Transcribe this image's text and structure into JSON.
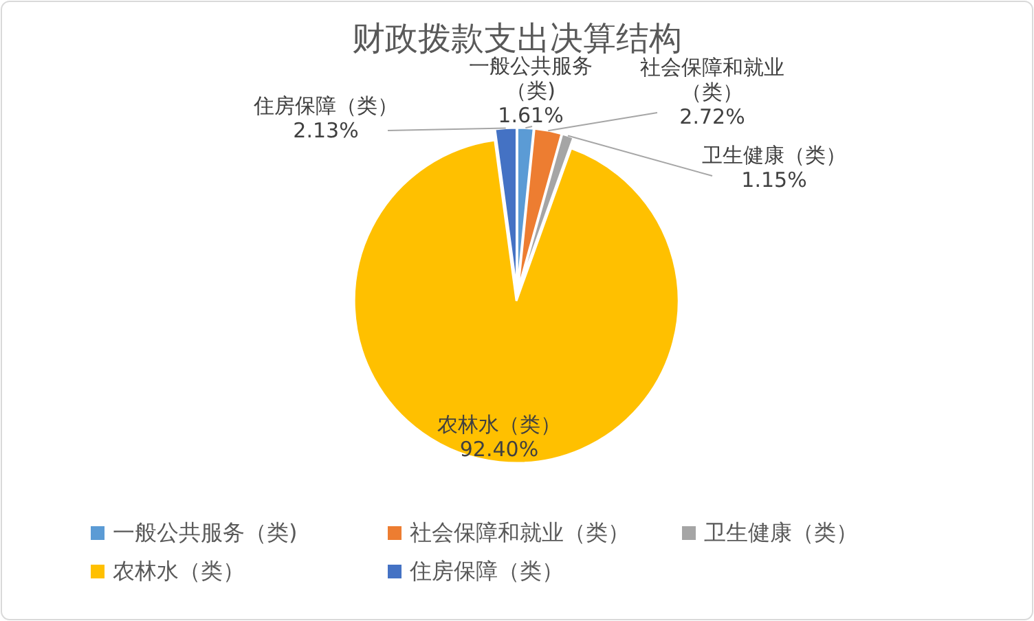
{
  "chart_data": {
    "type": "pie",
    "title": "财政拨款支出决算结构",
    "categories": [
      "一般公共服务（类)",
      "社会保障和就业（类）",
      "卫生健康（类）",
      "农林水（类）",
      "住房保障（类）"
    ],
    "values": [
      1.61,
      2.72,
      1.15,
      92.4,
      2.13
    ],
    "value_labels": [
      "1.61%",
      "2.72%",
      "1.15%",
      "92.40%",
      "2.13%"
    ],
    "colors": [
      "#5b9bd5",
      "#ed7d31",
      "#a5a5a5",
      "#ffc000",
      "#4472c4"
    ],
    "legend": "bottom"
  }
}
